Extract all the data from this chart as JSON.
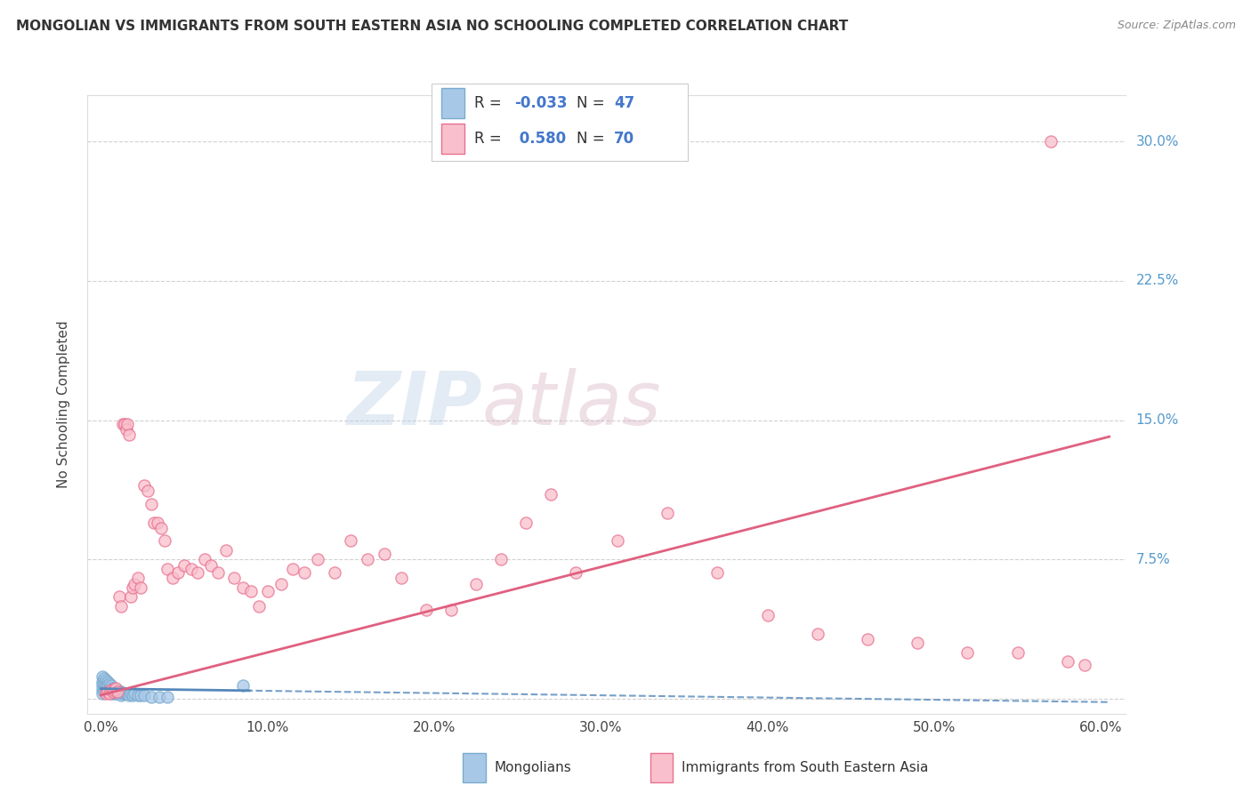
{
  "title": "MONGOLIAN VS IMMIGRANTS FROM SOUTH EASTERN ASIA NO SCHOOLING COMPLETED CORRELATION CHART",
  "source": "Source: ZipAtlas.com",
  "ylabel": "No Schooling Completed",
  "x_ticks": [
    0.0,
    0.1,
    0.2,
    0.3,
    0.4,
    0.5,
    0.6
  ],
  "x_tick_labels": [
    "0.0%",
    "10.0%",
    "20.0%",
    "30.0%",
    "40.0%",
    "50.0%",
    "60.0%"
  ],
  "y_ticks": [
    0.0,
    0.075,
    0.15,
    0.225,
    0.3
  ],
  "y_tick_labels": [
    "",
    "7.5%",
    "15.0%",
    "22.5%",
    "30.0%"
  ],
  "mongolian_color": "#a8c8e8",
  "mongolian_edge": "#7aabcf",
  "sea_color": "#f9c0cc",
  "sea_edge": "#e87090",
  "trend_mongolian": "#5588bb",
  "trend_sea": "#e06080",
  "legend_blue_color": "#4477cc",
  "R_mongolian": -0.033,
  "N_mongolian": 47,
  "R_sea": 0.58,
  "N_sea": 70,
  "watermark_zip": "ZIP",
  "watermark_atlas": "atlas",
  "background_color": "#ffffff",
  "grid_color": "#cccccc",
  "mongolian_points_x": [
    0.001,
    0.001,
    0.001,
    0.001,
    0.001,
    0.002,
    0.002,
    0.002,
    0.002,
    0.003,
    0.003,
    0.003,
    0.004,
    0.004,
    0.004,
    0.005,
    0.005,
    0.005,
    0.006,
    0.006,
    0.006,
    0.007,
    0.007,
    0.008,
    0.008,
    0.009,
    0.009,
    0.01,
    0.01,
    0.011,
    0.012,
    0.012,
    0.013,
    0.014,
    0.015,
    0.016,
    0.017,
    0.018,
    0.019,
    0.02,
    0.022,
    0.024,
    0.026,
    0.03,
    0.035,
    0.04,
    0.085
  ],
  "mongolian_points_y": [
    0.012,
    0.009,
    0.007,
    0.005,
    0.003,
    0.011,
    0.008,
    0.006,
    0.004,
    0.01,
    0.007,
    0.005,
    0.009,
    0.007,
    0.004,
    0.008,
    0.006,
    0.004,
    0.007,
    0.005,
    0.003,
    0.006,
    0.004,
    0.005,
    0.003,
    0.005,
    0.003,
    0.005,
    0.003,
    0.004,
    0.004,
    0.002,
    0.003,
    0.003,
    0.003,
    0.003,
    0.002,
    0.003,
    0.002,
    0.003,
    0.002,
    0.002,
    0.002,
    0.001,
    0.001,
    0.001,
    0.007
  ],
  "sea_points_x": [
    0.003,
    0.004,
    0.005,
    0.006,
    0.007,
    0.008,
    0.009,
    0.01,
    0.011,
    0.012,
    0.013,
    0.014,
    0.015,
    0.016,
    0.017,
    0.018,
    0.019,
    0.02,
    0.022,
    0.024,
    0.026,
    0.028,
    0.03,
    0.032,
    0.034,
    0.036,
    0.038,
    0.04,
    0.043,
    0.046,
    0.05,
    0.054,
    0.058,
    0.062,
    0.066,
    0.07,
    0.075,
    0.08,
    0.085,
    0.09,
    0.095,
    0.1,
    0.108,
    0.115,
    0.122,
    0.13,
    0.14,
    0.15,
    0.16,
    0.17,
    0.18,
    0.195,
    0.21,
    0.225,
    0.24,
    0.255,
    0.27,
    0.285,
    0.31,
    0.34,
    0.37,
    0.4,
    0.43,
    0.46,
    0.49,
    0.52,
    0.55,
    0.57,
    0.58,
    0.59
  ],
  "sea_points_y": [
    0.003,
    0.004,
    0.003,
    0.005,
    0.004,
    0.005,
    0.006,
    0.004,
    0.055,
    0.05,
    0.148,
    0.148,
    0.145,
    0.148,
    0.142,
    0.055,
    0.06,
    0.062,
    0.065,
    0.06,
    0.115,
    0.112,
    0.105,
    0.095,
    0.095,
    0.092,
    0.085,
    0.07,
    0.065,
    0.068,
    0.072,
    0.07,
    0.068,
    0.075,
    0.072,
    0.068,
    0.08,
    0.065,
    0.06,
    0.058,
    0.05,
    0.058,
    0.062,
    0.07,
    0.068,
    0.075,
    0.068,
    0.085,
    0.075,
    0.078,
    0.065,
    0.048,
    0.048,
    0.062,
    0.075,
    0.095,
    0.11,
    0.068,
    0.085,
    0.1,
    0.068,
    0.045,
    0.035,
    0.032,
    0.03,
    0.025,
    0.025,
    0.3,
    0.02,
    0.018
  ]
}
